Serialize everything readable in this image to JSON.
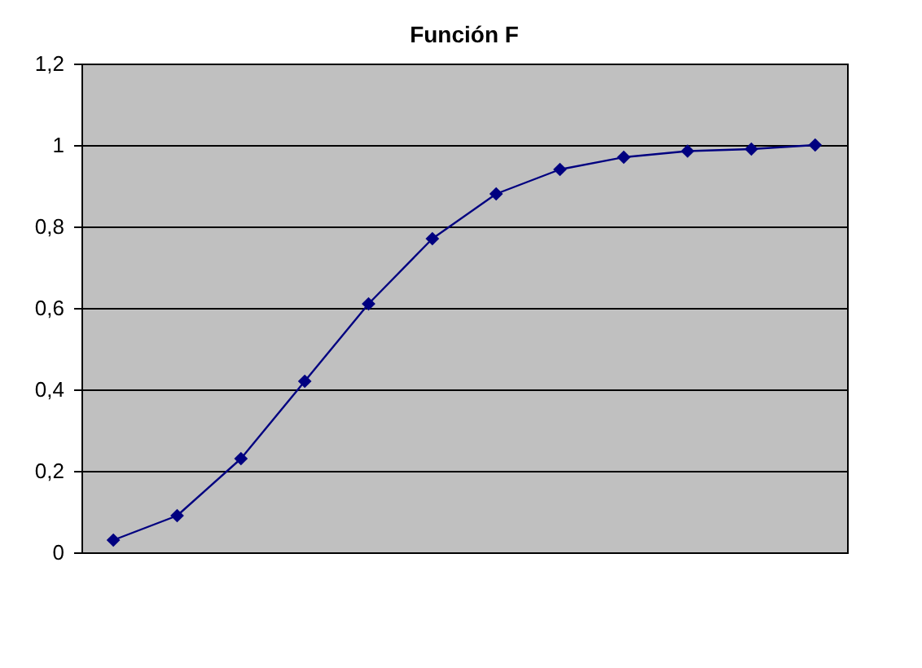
{
  "chart_data": {
    "type": "line",
    "title": "Función F",
    "categories": [
      null,
      null,
      null,
      null,
      null,
      null,
      null,
      null,
      null,
      null,
      null,
      null
    ],
    "series": [
      {
        "color": "#000080",
        "values": [
          0.03,
          0.09,
          0.23,
          0.42,
          0.61,
          0.77,
          0.88,
          0.94,
          0.97,
          0.985,
          0.99,
          1.0
        ]
      }
    ],
    "ylim": [
      0,
      1.2
    ],
    "yticks": [
      0,
      {
        "value": 0.2,
        "label": "0,2"
      },
      {
        "value": 0.4,
        "label": "0,4"
      },
      {
        "value": 0.6,
        "label": "0,6"
      },
      {
        "value": 0.8,
        "label": "0,8"
      },
      1,
      {
        "value": 1.2,
        "label": "1,2"
      }
    ],
    "grid": "y",
    "marker": "diamond",
    "line_style": "solid",
    "tick_labels": "y"
  }
}
